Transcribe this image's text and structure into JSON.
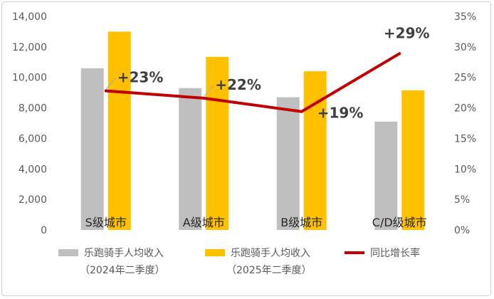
{
  "chart_data": {
    "type": "bar",
    "categories": [
      "S级城市",
      "A级城市",
      "B级城市",
      "C/D级城市"
    ],
    "series": [
      {
        "name": "乐跑骑手人均收入（2024年二季度）",
        "type": "bar",
        "axis": "left",
        "color": "#BFBFBF",
        "values": [
          10600,
          9300,
          8700,
          7100
        ]
      },
      {
        "name": "乐跑骑手人均收入（2025年二季度）",
        "type": "bar",
        "axis": "left",
        "color": "#FFC000",
        "values": [
          13000,
          11350,
          10400,
          9150
        ]
      },
      {
        "name": "同比增长率",
        "type": "line",
        "axis": "right",
        "color": "#C00000",
        "values": [
          0.228,
          0.216,
          0.194,
          0.289
        ]
      }
    ],
    "data_labels": [
      "+23%",
      "+22%",
      "+19%",
      "+29%"
    ],
    "y_left": {
      "ticks": [
        "0",
        "2,000",
        "4,000",
        "6,000",
        "8,000",
        "10,000",
        "12,000",
        "14,000"
      ],
      "range": [
        0,
        14000
      ]
    },
    "y_right": {
      "ticks": [
        "0%",
        "5%",
        "10%",
        "15%",
        "20%",
        "25%",
        "30%",
        "35%"
      ],
      "range": [
        0,
        0.35
      ]
    },
    "grid": false,
    "legend": {
      "position": "bottom",
      "items": [
        {
          "line1": "乐跑骑手人均收入",
          "line2": "（2024年二季度）",
          "color": "#BFBFBF",
          "kind": "bar"
        },
        {
          "line1": "乐跑骑手人均收入",
          "line2": "（2025年二季度）",
          "color": "#FFC000",
          "kind": "bar"
        },
        {
          "line1": "同比增长率",
          "line2": "",
          "color": "#C00000",
          "kind": "line"
        }
      ]
    }
  }
}
